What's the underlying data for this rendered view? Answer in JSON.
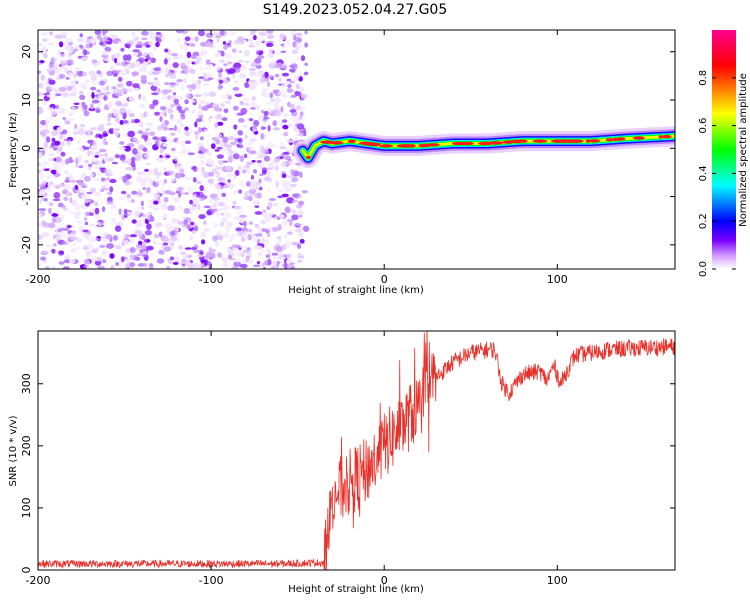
{
  "title": "S149.2023.052.04.27.G05",
  "chart_data": [
    {
      "type": "heatmap",
      "xlabel": "Height of straight line (km)",
      "ylabel": "Frequency (Hz)",
      "xlim": [
        -200,
        168
      ],
      "ylim": [
        -25,
        24.5
      ],
      "x_ticks": [
        -200,
        -100,
        0,
        100
      ],
      "y_ticks": [
        -20,
        -10,
        0,
        10,
        20
      ],
      "noise_region_x": [
        -200,
        -45
      ],
      "signal_ridge": {
        "x": [
          -47,
          -44,
          -40,
          -35,
          -30,
          -20,
          -10,
          0,
          10,
          20,
          40,
          60,
          80,
          100,
          120,
          140,
          168
        ],
        "frequency_hz": [
          -0.5,
          -2.0,
          0.5,
          1.5,
          1.0,
          1.5,
          1.0,
          0.5,
          0.5,
          0.5,
          1.0,
          1.0,
          1.5,
          1.5,
          1.5,
          2.0,
          2.5
        ]
      },
      "colorbar": {
        "label": "Normalized spectral amplitude",
        "ticks": [
          0.0,
          0.2,
          0.4,
          0.6,
          0.8
        ],
        "range": [
          0,
          1
        ],
        "colors": [
          "#ffffff",
          "#7a00ff",
          "#0000ff",
          "#00ffff",
          "#00ff00",
          "#ffff00",
          "#ff0000",
          "#ff0090"
        ]
      }
    },
    {
      "type": "line",
      "xlabel": "Height of straight line (km)",
      "ylabel": "SNR (10 * v/v)",
      "xlim": [
        -200,
        168
      ],
      "ylim": [
        0,
        385
      ],
      "x_ticks": [
        -200,
        -100,
        0,
        100
      ],
      "y_ticks": [
        0,
        100,
        200,
        300
      ],
      "color": "#e8302a",
      "trend": {
        "x": [
          -200,
          -60,
          -35,
          -33,
          -30,
          -20,
          -10,
          0,
          10,
          20,
          30,
          40,
          50,
          60,
          64,
          68,
          72,
          80,
          90,
          94,
          98,
          102,
          110,
          130,
          150,
          168
        ],
        "snr": [
          10,
          10,
          12,
          40,
          120,
          140,
          160,
          200,
          230,
          265,
          310,
          335,
          350,
          355,
          355,
          300,
          285,
          315,
          320,
          305,
          330,
          300,
          345,
          355,
          358,
          360
        ]
      }
    }
  ]
}
